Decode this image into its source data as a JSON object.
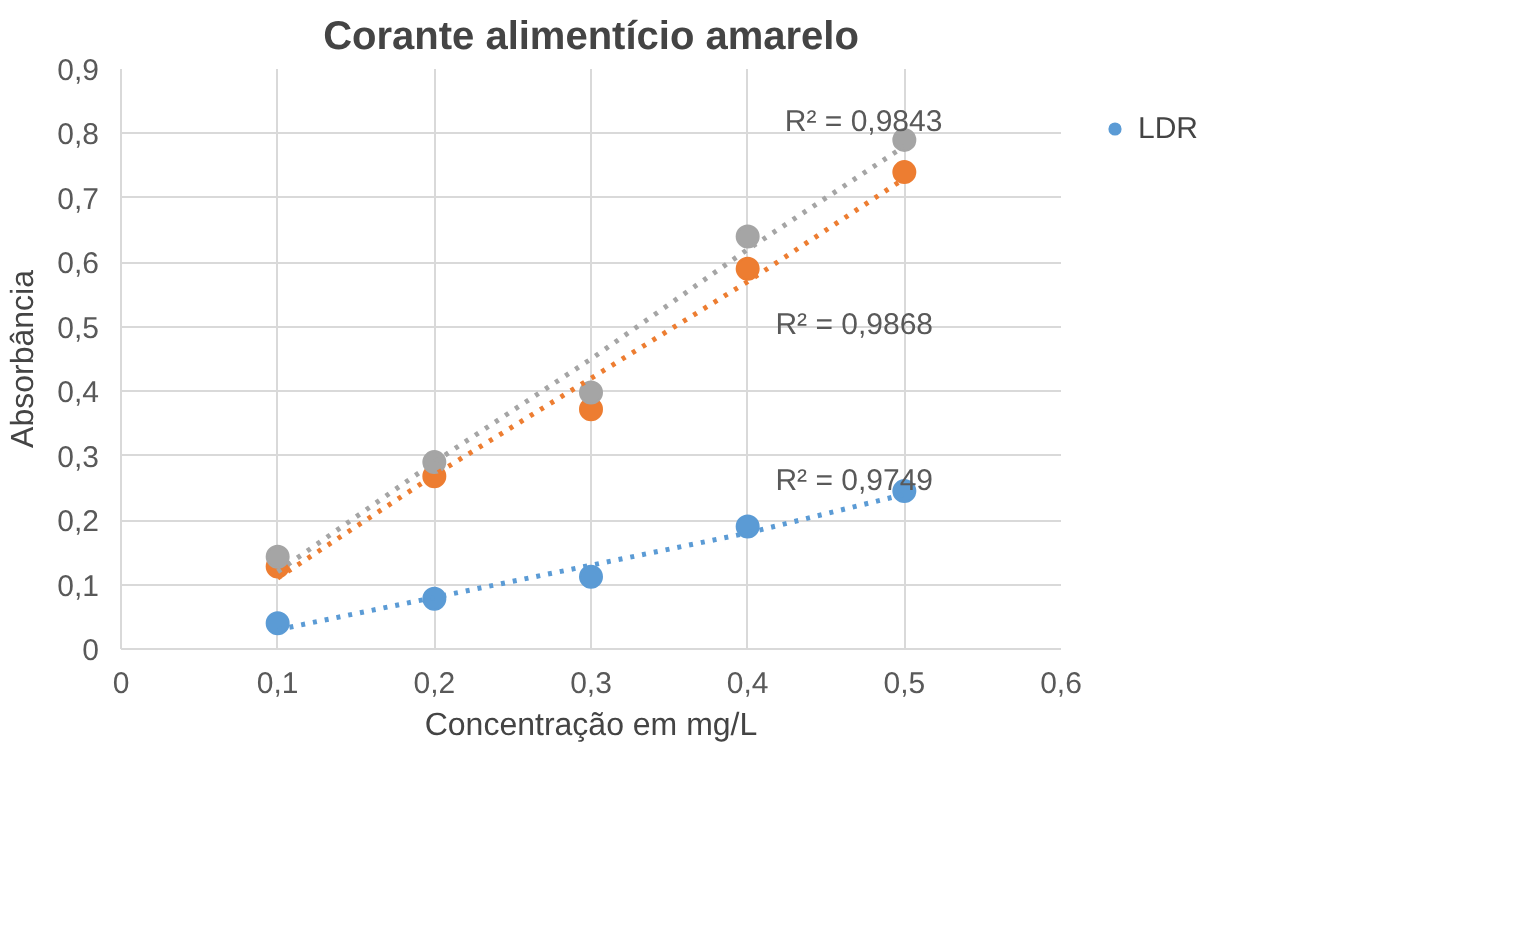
{
  "chart_data": {
    "type": "scatter",
    "title": "Corante alimentício amarelo",
    "xlabel": "Concentração em mg/L",
    "ylabel": "Absorbância",
    "x": [
      0.1,
      0.2,
      0.3,
      0.4,
      0.5
    ],
    "series": [
      {
        "name": "LDR",
        "color": "#5b9bd5",
        "values": [
          0.04,
          0.078,
          0.112,
          0.19,
          0.245
        ]
      },
      {
        "color": "#ed7d31",
        "values": [
          0.128,
          0.268,
          0.372,
          0.59,
          0.74
        ]
      },
      {
        "color": "#a5a5a5",
        "values": [
          0.143,
          0.29,
          0.398,
          0.64,
          0.79
        ]
      },
      {
        "type": "line",
        "color": "#5b9bd5",
        "values": [
          0.03,
          0.08,
          0.13,
          0.18,
          0.24
        ],
        "line_style": "dotted",
        "marker": "none"
      },
      {
        "type": "line",
        "color": "#ed7d31",
        "values": [
          0.11,
          0.27,
          0.42,
          0.57,
          0.73
        ],
        "line_style": "dotted",
        "marker": "none"
      },
      {
        "type": "line",
        "color": "#a5a5a5",
        "values": [
          0.12,
          0.29,
          0.45,
          0.62,
          0.78
        ],
        "line_style": "dotted",
        "marker": "none"
      }
    ],
    "marker": "circle",
    "xlim": [
      0,
      0.6
    ],
    "ylim": [
      0,
      0.9
    ],
    "xticks": [
      0,
      {
        "value": 0.1,
        "label": "0,1"
      },
      {
        "value": 0.2,
        "label": "0,2"
      },
      {
        "value": 0.3,
        "label": "0,3"
      },
      {
        "value": 0.4,
        "label": "0,4"
      },
      {
        "value": 0.5,
        "label": "0,5"
      },
      {
        "value": 0.6,
        "label": "0,6"
      }
    ],
    "yticks": [
      0,
      {
        "value": 0.1,
        "label": "0,1"
      },
      {
        "value": 0.2,
        "label": "0,2"
      },
      {
        "value": 0.3,
        "label": "0,3"
      },
      {
        "value": 0.4,
        "label": "0,4"
      },
      {
        "value": 0.5,
        "label": "0,5"
      },
      {
        "value": 0.6,
        "label": "0,6"
      },
      {
        "value": 0.7,
        "label": "0,7"
      },
      {
        "value": 0.8,
        "label": "0,8"
      },
      {
        "value": 0.9,
        "label": "0,9"
      }
    ],
    "annotations": [
      "R² = 0,9843",
      "R² = 0,9868",
      "R² = 0,9749"
    ],
    "grid": true,
    "legend": "right"
  }
}
